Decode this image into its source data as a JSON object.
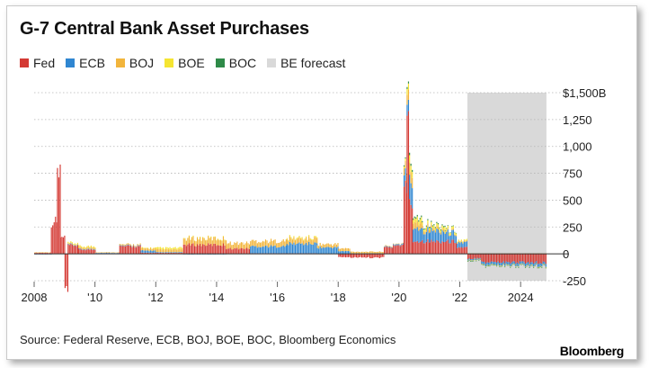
{
  "chart_data": {
    "type": "bar",
    "stacked": true,
    "title": "G-7 Central Bank Asset Purchases",
    "y_unit_label": "$1,500B",
    "ylim": [
      -250,
      1500
    ],
    "y_ticks": [
      {
        "value": 1500,
        "label": "$1,500B"
      },
      {
        "value": 1250,
        "label": "1,250"
      },
      {
        "value": 1000,
        "label": "1,000"
      },
      {
        "value": 750,
        "label": "750"
      },
      {
        "value": 500,
        "label": "500"
      },
      {
        "value": 250,
        "label": "250"
      },
      {
        "value": 0,
        "label": "0"
      },
      {
        "value": -250,
        "label": "-250"
      }
    ],
    "x_range": [
      2008.0,
      2025.0
    ],
    "x_ticks": [
      {
        "value": 2008,
        "label": "2008"
      },
      {
        "value": 2010,
        "label": "'10"
      },
      {
        "value": 2012,
        "label": "'12"
      },
      {
        "value": 2014,
        "label": "'14"
      },
      {
        "value": 2016,
        "label": "'16"
      },
      {
        "value": 2018,
        "label": "'18"
      },
      {
        "value": 2020,
        "label": "'20"
      },
      {
        "value": 2022,
        "label": "'22"
      },
      {
        "value": 2024,
        "label": "2024"
      }
    ],
    "forecast": {
      "label": "BE forecast",
      "start": 2022.25,
      "end": 2024.85,
      "color": "#d9d9d9"
    },
    "grid": "horizontal dotted",
    "legend_position": "top-left",
    "series": [
      {
        "name": "Fed",
        "color": "#d43a34"
      },
      {
        "name": "ECB",
        "color": "#2f86d1"
      },
      {
        "name": "BOJ",
        "color": "#f2b53c"
      },
      {
        "name": "BOE",
        "color": "#f5e532"
      },
      {
        "name": "BOC",
        "color": "#2e8a48"
      }
    ],
    "segments": [
      {
        "start": 2008.0,
        "end": 2008.55,
        "Fed": 10,
        "ECB": -5,
        "BOJ": 5,
        "BOE": 0,
        "BOC": 0
      },
      {
        "start": 2008.55,
        "end": 2008.75,
        "Fed": 300,
        "ECB": 0,
        "BOJ": 0,
        "BOE": 0,
        "BOC": 0
      },
      {
        "start": 2008.75,
        "end": 2008.85,
        "Fed": 760,
        "ECB": 0,
        "BOJ": 0,
        "BOE": 0,
        "BOC": 0
      },
      {
        "start": 2008.85,
        "end": 2009.0,
        "Fed": 150,
        "ECB": 0,
        "BOJ": 0,
        "BOE": 0,
        "BOC": 0
      },
      {
        "start": 2009.0,
        "end": 2009.1,
        "Fed": -300,
        "ECB": 0,
        "BOJ": 0,
        "BOE": 0,
        "BOC": 0
      },
      {
        "start": 2009.1,
        "end": 2009.45,
        "Fed": 80,
        "ECB": 5,
        "BOJ": 5,
        "BOE": 10,
        "BOC": 0
      },
      {
        "start": 2009.45,
        "end": 2010.0,
        "Fed": 40,
        "ECB": 5,
        "BOJ": 15,
        "BOE": 10,
        "BOC": 0
      },
      {
        "start": 2010.0,
        "end": 2010.8,
        "Fed": 5,
        "ECB": 5,
        "BOJ": 5,
        "BOE": 0,
        "BOC": 0
      },
      {
        "start": 2010.8,
        "end": 2011.5,
        "Fed": 70,
        "ECB": 5,
        "BOJ": 10,
        "BOE": 0,
        "BOC": 0
      },
      {
        "start": 2011.5,
        "end": 2012.0,
        "Fed": 10,
        "ECB": 20,
        "BOJ": 20,
        "BOE": 5,
        "BOC": 0
      },
      {
        "start": 2012.0,
        "end": 2012.9,
        "Fed": 10,
        "ECB": 5,
        "BOJ": 25,
        "BOE": 15,
        "BOC": 0
      },
      {
        "start": 2012.9,
        "end": 2014.3,
        "Fed": 85,
        "ECB": -5,
        "BOJ": 55,
        "BOE": 5,
        "BOC": 0
      },
      {
        "start": 2014.3,
        "end": 2015.1,
        "Fed": 50,
        "ECB": 0,
        "BOJ": 50,
        "BOE": 0,
        "BOC": 0
      },
      {
        "start": 2015.1,
        "end": 2016.3,
        "Fed": 5,
        "ECB": 65,
        "BOJ": 50,
        "BOE": 0,
        "BOC": 0
      },
      {
        "start": 2016.3,
        "end": 2017.3,
        "Fed": 5,
        "ECB": 90,
        "BOJ": 45,
        "BOE": 10,
        "BOC": 0
      },
      {
        "start": 2017.3,
        "end": 2018.0,
        "Fed": 0,
        "ECB": 60,
        "BOJ": 30,
        "BOE": 0,
        "BOC": 0
      },
      {
        "start": 2018.0,
        "end": 2018.4,
        "Fed": -30,
        "ECB": 25,
        "BOJ": 25,
        "BOE": 0,
        "BOC": 0
      },
      {
        "start": 2018.4,
        "end": 2019.5,
        "Fed": -35,
        "ECB": 5,
        "BOJ": 15,
        "BOE": 0,
        "BOC": 0
      },
      {
        "start": 2019.5,
        "end": 2019.8,
        "Fed": 60,
        "ECB": 5,
        "BOJ": 5,
        "BOE": 0,
        "BOC": 0
      },
      {
        "start": 2019.8,
        "end": 2020.15,
        "Fed": 80,
        "ECB": 10,
        "BOJ": 5,
        "BOE": 0,
        "BOC": 0
      },
      {
        "start": 2020.15,
        "end": 2020.25,
        "Fed": 600,
        "ECB": 100,
        "BOJ": 60,
        "BOE": 20,
        "BOC": 10
      },
      {
        "start": 2020.25,
        "end": 2020.33,
        "Fed": 1400,
        "ECB": 110,
        "BOJ": 100,
        "BOE": 60,
        "BOC": 20
      },
      {
        "start": 2020.33,
        "end": 2020.45,
        "Fed": 450,
        "ECB": 200,
        "BOJ": 100,
        "BOE": 60,
        "BOC": 20
      },
      {
        "start": 2020.45,
        "end": 2020.75,
        "Fed": 120,
        "ECB": 130,
        "BOJ": 60,
        "BOE": 40,
        "BOC": 15
      },
      {
        "start": 2020.75,
        "end": 2021.0,
        "Fed": 120,
        "ECB": 100,
        "BOJ": 30,
        "BOE": 25,
        "BOC": 10
      },
      {
        "start": 2021.0,
        "end": 2021.5,
        "Fed": 115,
        "ECB": 100,
        "BOJ": 20,
        "BOE": 25,
        "BOC": 10
      },
      {
        "start": 2021.5,
        "end": 2021.9,
        "Fed": 115,
        "ECB": 80,
        "BOJ": 10,
        "BOE": 20,
        "BOC": 5
      },
      {
        "start": 2021.9,
        "end": 2022.25,
        "Fed": 60,
        "ECB": 45,
        "BOJ": 10,
        "BOE": 10,
        "BOC": 0
      },
      {
        "start": 2022.25,
        "end": 2022.7,
        "Fed": -45,
        "ECB": -10,
        "BOJ": 5,
        "BOE": -5,
        "BOC": -5
      },
      {
        "start": 2022.7,
        "end": 2024.85,
        "Fed": -80,
        "ECB": -25,
        "BOJ": 5,
        "BOE": -5,
        "BOC": -5
      }
    ]
  },
  "footer": {
    "source": "Source: Federal Reserve, ECB, BOJ, BOE, BOC, Bloomberg Economics",
    "brand": "Bloomberg"
  }
}
